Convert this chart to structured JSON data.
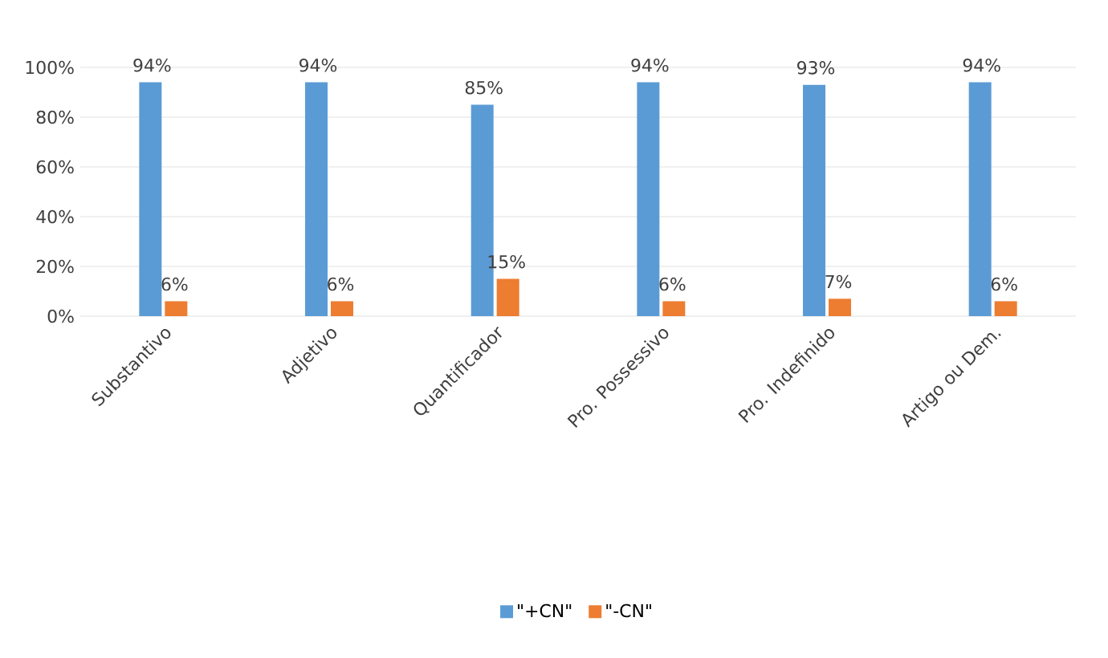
{
  "chart_data": {
    "type": "bar",
    "categories": [
      "Substantivo",
      "Adjetivo",
      "Quantificador",
      "Pro. Possessivo",
      "Pro. Indefinido",
      "Artigo ou Dem."
    ],
    "series": [
      {
        "name": "\"+CN\"",
        "color": "#5b9bd5",
        "values": [
          94,
          94,
          85,
          94,
          93,
          94
        ],
        "value_labels": [
          "94%",
          "94%",
          "85%",
          "94%",
          "93%",
          "94%"
        ]
      },
      {
        "name": "\"-CN\"",
        "color": "#ed7d31",
        "values": [
          6,
          6,
          15,
          6,
          7,
          6
        ],
        "value_labels": [
          "6%",
          "6%",
          "15%",
          "6%",
          "7%",
          "6%"
        ]
      }
    ],
    "ylim": [
      0,
      100
    ],
    "yticks": [
      {
        "value": 0,
        "label": "0%"
      },
      {
        "value": 20,
        "label": "20%"
      },
      {
        "value": 40,
        "label": "40%"
      },
      {
        "value": 60,
        "label": "60%"
      },
      {
        "value": 80,
        "label": "80%"
      },
      {
        "value": 100,
        "label": "100%"
      }
    ],
    "grid": "y",
    "legend": "bottom"
  }
}
